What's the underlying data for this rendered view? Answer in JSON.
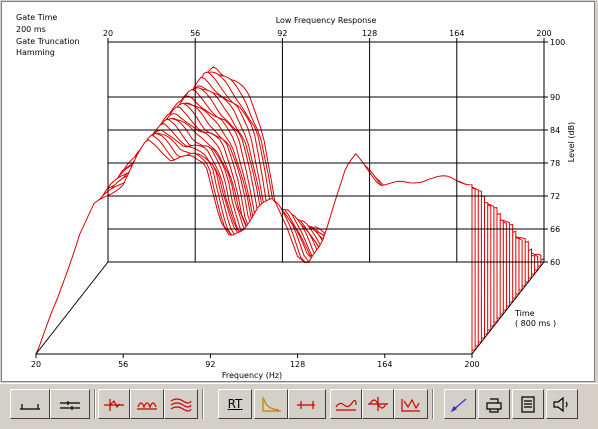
{
  "chart_data": {
    "type": "waterfall",
    "title": "Low Frequency Response",
    "info_lines": [
      "Gate Time",
      "200 ms",
      "Gate Truncation",
      "Hamming"
    ],
    "xlabel": "Frequency (Hz)",
    "ylabel": "Level (dB)",
    "zlabel_line1": "Time",
    "zlabel_line2": "( 800 ms )",
    "x_ticks": [
      "20",
      "56",
      "92",
      "128",
      "164",
      "200"
    ],
    "y_ticks": [
      "100",
      "90",
      "84",
      "78",
      "72",
      "66",
      "60"
    ],
    "xlim": [
      20,
      200
    ],
    "ylim": [
      60,
      100
    ],
    "slices": 24,
    "line_color": "#dd0000",
    "front_response": [
      [
        20,
        60
      ],
      [
        29,
        70
      ],
      [
        38,
        82
      ],
      [
        44,
        87
      ],
      [
        50,
        89
      ],
      [
        56,
        91
      ],
      [
        62,
        96
      ],
      [
        66,
        99
      ],
      [
        70,
        98
      ],
      [
        76,
        95
      ],
      [
        84,
        96
      ],
      [
        90,
        95
      ],
      [
        96,
        84
      ],
      [
        100,
        81
      ],
      [
        106,
        83
      ],
      [
        112,
        87
      ],
      [
        118,
        88
      ],
      [
        124,
        83
      ],
      [
        128,
        78
      ],
      [
        132,
        76
      ],
      [
        138,
        80
      ],
      [
        144,
        89
      ],
      [
        148,
        94
      ],
      [
        152,
        96
      ],
      [
        156,
        94
      ],
      [
        162,
        91
      ],
      [
        168,
        91
      ],
      [
        174,
        91
      ],
      [
        182,
        92
      ],
      [
        190,
        92
      ],
      [
        200,
        91
      ]
    ],
    "back_response": [
      [
        20,
        60
      ],
      [
        28,
        66
      ],
      [
        36,
        76
      ],
      [
        42,
        84
      ],
      [
        48,
        88
      ],
      [
        52,
        90
      ],
      [
        58,
        92
      ],
      [
        64,
        96
      ],
      [
        72,
        93
      ],
      [
        78,
        90
      ],
      [
        84,
        84
      ],
      [
        88,
        74
      ],
      [
        92,
        62
      ],
      [
        96,
        61
      ],
      [
        100,
        63
      ],
      [
        106,
        66
      ],
      [
        112,
        64
      ],
      [
        118,
        61
      ],
      [
        122,
        61
      ],
      [
        128,
        60
      ],
      [
        134,
        62
      ],
      [
        138,
        66
      ],
      [
        140,
        70
      ],
      [
        144,
        66
      ],
      [
        150,
        61
      ],
      [
        156,
        60
      ],
      [
        164,
        60
      ],
      [
        172,
        61
      ],
      [
        180,
        60
      ],
      [
        190,
        60
      ],
      [
        200,
        60
      ]
    ]
  },
  "toolbar": {
    "rt_label": "RT",
    "buttons": [
      "scale-bar",
      "zoom",
      "impulse",
      "waterfall-mode",
      "multi-curve",
      "rt",
      "decay",
      "gate-window",
      "freq-response",
      "phase",
      "group-delay",
      "color",
      "print",
      "document",
      "speaker"
    ]
  }
}
